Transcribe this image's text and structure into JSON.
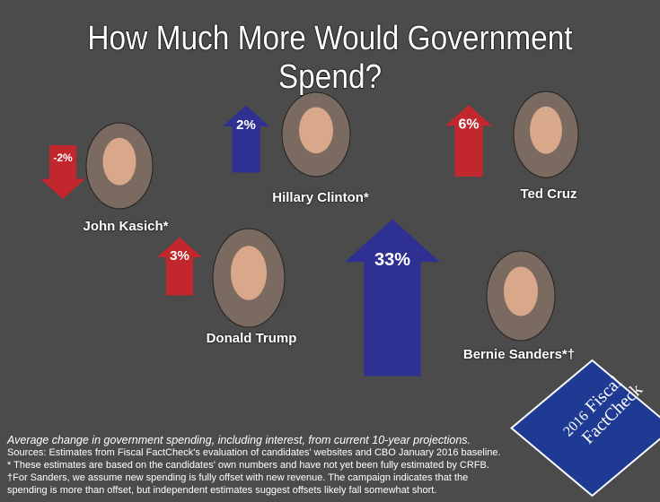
{
  "title": "How Much More Would Government Spend?",
  "colors": {
    "increase_red": "#c1272d",
    "increase_blue": "#2e3192",
    "background": "#4b4b4b"
  },
  "chart_data": {
    "type": "bar",
    "title": "How Much More Would Government Spend?",
    "categories": [
      "John Kasich*",
      "Hillary Clinton*",
      "Ted Cruz",
      "Donald Trump",
      "Bernie Sanders*†"
    ],
    "values": [
      -2,
      2,
      6,
      3,
      33
    ],
    "labels": [
      "-2%",
      "2%",
      "6%",
      "3%",
      "33%"
    ],
    "party_colors": [
      "#c1272d",
      "#2e3192",
      "#c1272d",
      "#c1272d",
      "#2e3192"
    ],
    "unit": "%"
  },
  "notes": [
    "Average change in government spending, including interest, from current 10-year projections.",
    "Sources: Estimates from Fiscal FactCheck's evaluation of candidates' websites and CBO January 2016 baseline.",
    "* These estimates are based on the candidates' own numbers and have not yet been fully estimated by CRFB.",
    "†For Sanders, we assume new spending is fully offset with new revenue. The campaign indicates that the",
    "spending is more than offset, but independent estimates suggest offsets likely fall somewhat short."
  ],
  "logo": {
    "year": "2016",
    "line1": "Fiscal",
    "line2": "FactCheck"
  }
}
